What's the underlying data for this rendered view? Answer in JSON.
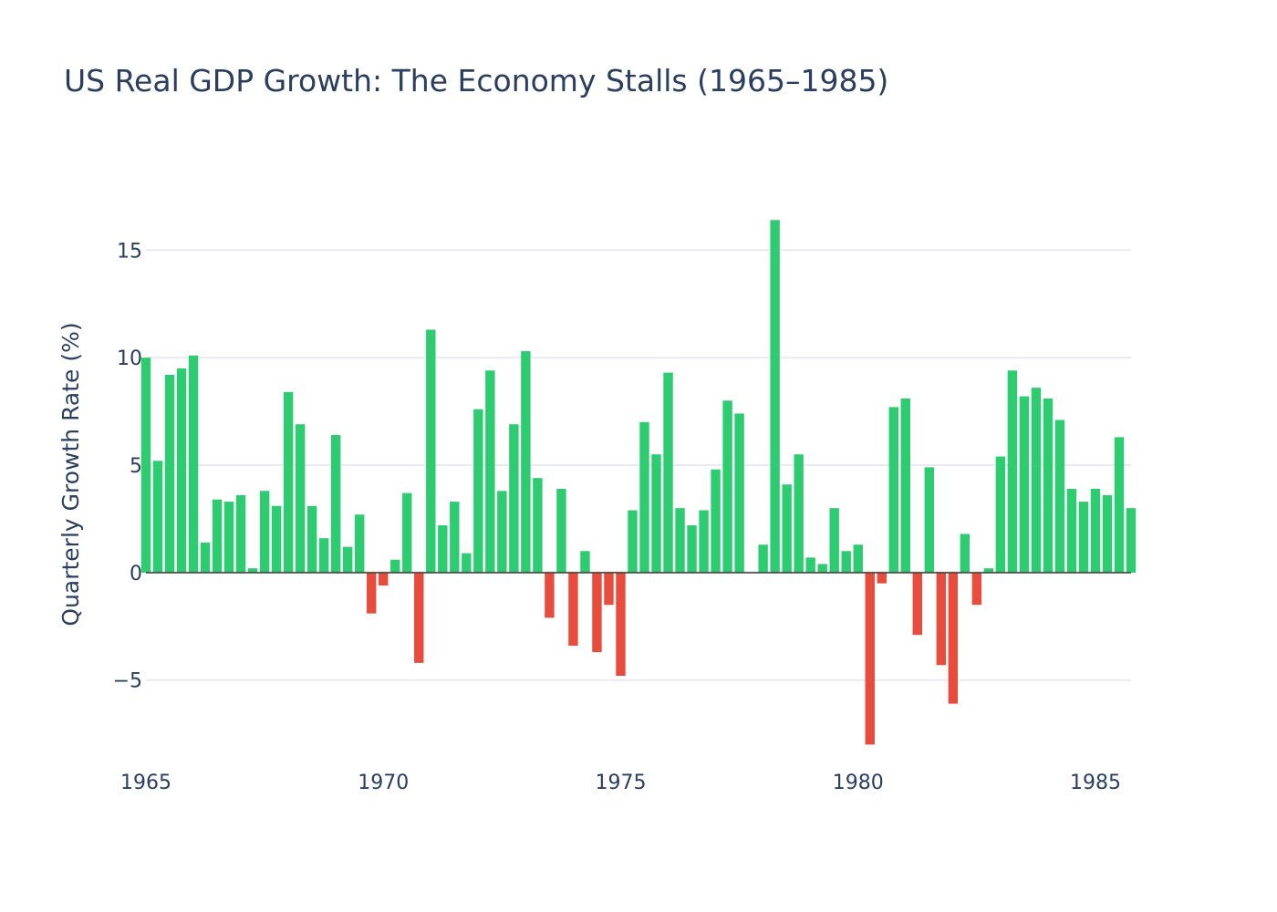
{
  "chart_data": {
    "type": "bar",
    "title": "US Real GDP Growth: The Economy Stalls (1965–1985)",
    "xlabel": "",
    "ylabel": "Quarterly Growth Rate (%)",
    "xlim": [
      1965,
      1985.75
    ],
    "ylim": [
      -9,
      19
    ],
    "x_ticks": [
      "1965",
      "1970",
      "1975",
      "1980",
      "1985"
    ],
    "y_ticks": [
      {
        "value": -5,
        "label": "−5"
      },
      {
        "value": 0,
        "label": "0"
      },
      {
        "value": 5,
        "label": "5"
      },
      {
        "value": 10,
        "label": "10"
      },
      {
        "value": 15,
        "label": "15"
      }
    ],
    "grid": true,
    "legend": "none",
    "colors": {
      "positive": "#2ecc71",
      "negative": "#e74c3c"
    },
    "x": [
      "1965-Q1",
      "1965-Q2",
      "1965-Q3",
      "1965-Q4",
      "1966-Q1",
      "1966-Q2",
      "1966-Q3",
      "1966-Q4",
      "1967-Q1",
      "1967-Q2",
      "1967-Q3",
      "1967-Q4",
      "1968-Q1",
      "1968-Q2",
      "1968-Q3",
      "1968-Q4",
      "1969-Q1",
      "1969-Q2",
      "1969-Q3",
      "1969-Q4",
      "1970-Q1",
      "1970-Q2",
      "1970-Q3",
      "1970-Q4",
      "1971-Q1",
      "1971-Q2",
      "1971-Q3",
      "1971-Q4",
      "1972-Q1",
      "1972-Q2",
      "1972-Q3",
      "1972-Q4",
      "1973-Q1",
      "1973-Q2",
      "1973-Q3",
      "1973-Q4",
      "1974-Q1",
      "1974-Q2",
      "1974-Q3",
      "1974-Q4",
      "1975-Q1",
      "1975-Q2",
      "1975-Q3",
      "1975-Q4",
      "1976-Q1",
      "1976-Q2",
      "1976-Q3",
      "1976-Q4",
      "1977-Q1",
      "1977-Q2",
      "1977-Q3",
      "1977-Q4",
      "1978-Q1",
      "1978-Q2",
      "1978-Q3",
      "1978-Q4",
      "1979-Q1",
      "1979-Q2",
      "1979-Q3",
      "1979-Q4",
      "1980-Q1",
      "1980-Q2",
      "1980-Q3",
      "1980-Q4",
      "1981-Q1",
      "1981-Q2",
      "1981-Q3",
      "1981-Q4",
      "1982-Q1",
      "1982-Q2",
      "1982-Q3",
      "1982-Q4",
      "1983-Q1",
      "1983-Q2",
      "1983-Q3",
      "1983-Q4",
      "1984-Q1",
      "1984-Q2",
      "1984-Q3",
      "1984-Q4",
      "1985-Q1",
      "1985-Q2",
      "1985-Q3",
      "1985-Q4"
    ],
    "values": [
      10.0,
      5.2,
      9.2,
      9.5,
      10.1,
      1.4,
      3.4,
      3.3,
      3.6,
      0.2,
      3.8,
      3.1,
      8.4,
      6.9,
      3.1,
      1.6,
      6.4,
      1.2,
      2.7,
      -1.9,
      -0.6,
      0.6,
      3.7,
      -4.2,
      11.3,
      2.2,
      3.3,
      0.9,
      7.6,
      9.4,
      3.8,
      6.9,
      10.3,
      4.4,
      -2.1,
      3.9,
      -3.4,
      1.0,
      -3.7,
      -1.5,
      -4.8,
      2.9,
      7.0,
      5.5,
      9.3,
      3.0,
      2.2,
      2.9,
      4.8,
      8.0,
      7.4,
      0.0,
      1.3,
      16.4,
      4.1,
      5.5,
      0.7,
      0.4,
      3.0,
      1.0,
      1.3,
      -8.0,
      -0.5,
      7.7,
      8.1,
      -2.9,
      4.9,
      -4.3,
      -6.1,
      1.8,
      -1.5,
      0.2,
      5.4,
      9.4,
      8.2,
      8.6,
      8.1,
      7.1,
      3.9,
      3.3,
      3.9,
      3.6,
      6.3,
      3.0
    ]
  }
}
